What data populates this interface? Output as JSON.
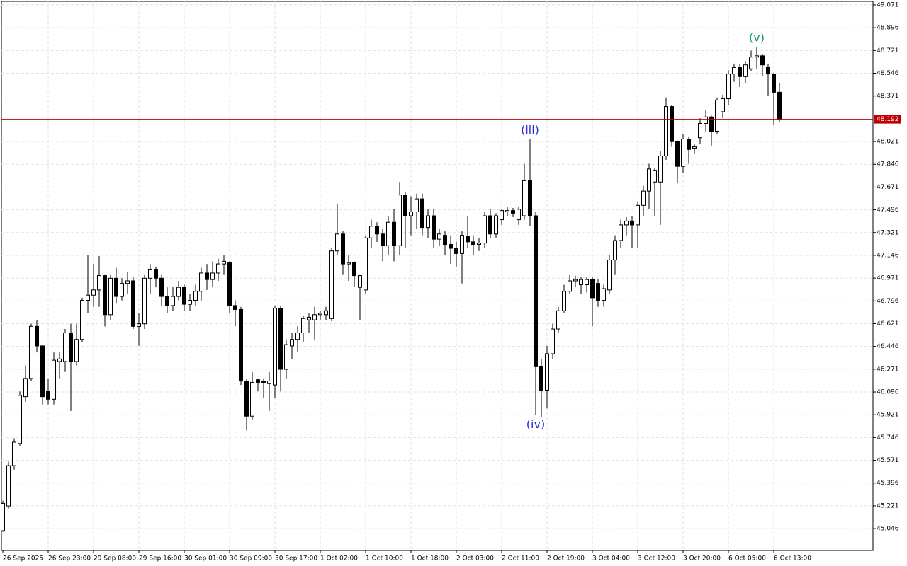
{
  "chart_data": {
    "type": "candlestick",
    "grid": true,
    "ylim": [
      44.878,
      49.098
    ],
    "yticks": [
      49.071,
      48.896,
      48.721,
      48.546,
      48.371,
      48.021,
      47.846,
      47.671,
      47.496,
      47.321,
      47.146,
      46.971,
      46.796,
      46.621,
      46.446,
      46.271,
      46.096,
      45.921,
      45.746,
      45.571,
      45.396,
      45.221,
      45.046
    ],
    "xlim": [
      -0.25,
      153.5
    ],
    "xticks": [
      {
        "value": 0,
        "label": "26 Sep 2025"
      },
      {
        "value": 8,
        "label": "26 Sep 23:00"
      },
      {
        "value": 16,
        "label": "29 Sep 08:00"
      },
      {
        "value": 24,
        "label": "29 Sep 16:00"
      },
      {
        "value": 32,
        "label": "30 Sep 01:00"
      },
      {
        "value": 40,
        "label": "30 Sep 09:00"
      },
      {
        "value": 48,
        "label": "30 Sep 17:00"
      },
      {
        "value": 56,
        "label": "1 Oct 02:00"
      },
      {
        "value": 64,
        "label": "1 Oct 10:00"
      },
      {
        "value": 72,
        "label": "1 Oct 18:00"
      },
      {
        "value": 80,
        "label": "2 Oct 03:00"
      },
      {
        "value": 88,
        "label": "2 Oct 11:00"
      },
      {
        "value": 96,
        "label": "2 Oct 19:00"
      },
      {
        "value": 104,
        "label": "3 Oct 04:00"
      },
      {
        "value": 112,
        "label": "3 Oct 12:00"
      },
      {
        "value": 120,
        "label": "3 Oct 20:00"
      },
      {
        "value": 128,
        "label": "6 Oct 05:00"
      },
      {
        "value": 136,
        "label": "6 Oct 13:00"
      }
    ],
    "up_color": "#ffffff",
    "down_color": "#000000",
    "open": [
      45.03,
      45.22,
      45.53,
      45.7,
      46.06,
      46.2,
      46.6,
      46.45,
      46.1,
      46.04,
      46.33,
      46.33,
      46.55,
      46.33,
      46.5,
      46.8,
      46.84,
      46.88,
      46.99,
      46.69,
      46.97,
      46.83,
      46.93,
      46.95,
      46.6,
      46.62,
      46.97,
      47.04,
      46.97,
      46.83,
      46.76,
      46.83,
      46.9,
      46.77,
      46.8,
      46.87,
      47.01,
      46.96,
      47.01,
      47.08,
      47.09,
      46.76,
      46.73,
      46.18,
      45.91,
      46.19,
      46.18,
      46.16,
      46.15,
      46.74,
      46.27,
      46.45,
      46.5,
      46.55,
      46.65,
      46.65,
      46.69,
      46.69,
      46.66,
      47.18,
      47.31,
      47.08,
      47.09,
      46.9,
      46.88,
      47.28,
      47.37,
      47.31,
      47.22,
      47.4,
      47.22,
      47.61,
      47.45,
      47.48,
      47.58,
      47.36,
      47.45,
      47.27,
      47.3,
      47.23,
      47.2,
      47.16,
      47.29,
      47.25,
      47.23,
      47.24,
      47.45,
      47.31,
      47.42,
      47.48,
      47.49,
      47.42,
      47.45,
      47.72,
      47.45,
      46.29,
      46.11,
      46.39,
      46.58,
      46.72,
      46.87,
      46.95,
      46.92,
      46.92,
      46.96,
      46.93,
      46.8,
      46.88,
      47.11,
      47.26,
      47.38,
      47.41,
      47.38,
      47.53,
      47.64,
      47.71,
      47.71,
      47.91,
      48.29,
      48.02,
      47.83,
      48.04,
      47.97,
      48.05,
      48.16,
      48.21,
      48.1,
      48.25,
      48.35,
      48.54,
      48.59,
      48.52,
      48.58,
      48.67,
      48.68,
      48.59,
      48.54,
      48.4
    ],
    "high": [
      45.26,
      45.56,
      45.74,
      46.1,
      46.3,
      46.62,
      46.65,
      46.46,
      46.2,
      46.4,
      46.4,
      46.58,
      46.62,
      46.62,
      46.82,
      47.15,
      47.08,
      47.14,
      47.0,
      47.0,
      47.05,
      46.97,
      47.02,
      46.98,
      46.7,
      47.0,
      47.08,
      47.06,
      47.0,
      46.9,
      46.9,
      46.95,
      46.92,
      46.85,
      46.92,
      47.05,
      47.08,
      47.1,
      47.12,
      47.15,
      47.1,
      46.8,
      46.75,
      46.2,
      46.25,
      46.2,
      46.2,
      46.25,
      46.76,
      46.76,
      46.5,
      46.55,
      46.6,
      46.68,
      46.7,
      46.75,
      46.72,
      46.75,
      47.2,
      47.54,
      47.33,
      47.15,
      47.1,
      47.0,
      47.3,
      47.42,
      47.4,
      47.35,
      47.45,
      47.5,
      47.71,
      47.63,
      47.6,
      47.62,
      47.62,
      47.5,
      47.5,
      47.35,
      47.33,
      47.3,
      47.25,
      47.33,
      47.45,
      47.3,
      47.28,
      47.48,
      47.5,
      47.47,
      47.5,
      47.52,
      47.51,
      47.52,
      47.85,
      48.04,
      47.48,
      46.35,
      46.45,
      46.62,
      46.75,
      46.92,
      47.0,
      46.99,
      46.98,
      46.98,
      46.98,
      46.96,
      46.92,
      47.15,
      47.3,
      47.42,
      47.44,
      47.45,
      47.56,
      47.68,
      47.85,
      47.82,
      47.95,
      48.36,
      48.3,
      48.03,
      48.08,
      48.06,
      48.0,
      48.2,
      48.26,
      48.22,
      48.36,
      48.38,
      48.57,
      48.62,
      48.62,
      48.64,
      48.72,
      48.75,
      48.69,
      48.62,
      48.55,
      48.47
    ],
    "low": [
      45.02,
      45.2,
      45.5,
      45.68,
      46.02,
      46.18,
      46.4,
      46.0,
      46.0,
      46.0,
      46.2,
      46.25,
      45.95,
      46.3,
      46.48,
      46.7,
      46.75,
      46.75,
      46.6,
      46.65,
      46.78,
      46.8,
      46.85,
      46.58,
      46.45,
      46.58,
      46.85,
      46.9,
      46.76,
      46.7,
      46.72,
      46.8,
      46.72,
      46.72,
      46.76,
      46.8,
      46.88,
      46.9,
      46.95,
      47.0,
      46.7,
      46.6,
      46.15,
      45.8,
      45.88,
      46.1,
      46.05,
      45.95,
      46.05,
      46.1,
      46.2,
      46.35,
      46.4,
      46.48,
      46.55,
      46.5,
      46.65,
      46.65,
      46.64,
      47.15,
      47.0,
      46.95,
      46.9,
      46.65,
      46.85,
      47.2,
      47.25,
      47.1,
      47.15,
      47.1,
      47.15,
      47.2,
      47.3,
      47.35,
      47.3,
      47.28,
      47.2,
      47.22,
      47.15,
      47.08,
      47.06,
      46.93,
      47.2,
      47.15,
      47.18,
      47.2,
      47.28,
      47.28,
      47.38,
      47.45,
      47.44,
      47.38,
      47.42,
      47.37,
      45.92,
      45.9,
      45.97,
      46.35,
      46.55,
      46.7,
      46.85,
      46.9,
      46.85,
      46.86,
      46.6,
      46.75,
      46.75,
      46.85,
      47.0,
      47.2,
      47.3,
      47.2,
      47.2,
      47.45,
      47.5,
      47.45,
      47.38,
      47.88,
      47.98,
      47.7,
      47.78,
      47.85,
      47.93,
      48.0,
      48.1,
      47.99,
      48.08,
      48.2,
      48.3,
      48.48,
      48.44,
      48.47,
      48.56,
      48.58,
      48.52,
      48.37,
      48.15,
      48.17
    ],
    "close": [
      45.24,
      45.53,
      45.71,
      46.07,
      46.2,
      46.6,
      46.45,
      46.06,
      46.04,
      46.34,
      46.35,
      46.55,
      46.33,
      46.5,
      46.8,
      46.84,
      46.88,
      46.99,
      46.69,
      46.97,
      46.83,
      46.93,
      46.95,
      46.6,
      46.62,
      46.97,
      47.04,
      46.97,
      46.83,
      46.76,
      46.83,
      46.9,
      46.77,
      46.8,
      46.87,
      47.01,
      46.96,
      47.01,
      47.08,
      47.1,
      46.76,
      46.73,
      46.18,
      45.91,
      46.17,
      46.17,
      46.17,
      46.18,
      46.74,
      46.27,
      46.46,
      46.5,
      46.55,
      46.66,
      46.67,
      46.69,
      46.7,
      46.72,
      47.18,
      47.31,
      47.08,
      47.09,
      46.99,
      46.99,
      47.28,
      47.37,
      47.31,
      47.22,
      47.4,
      47.22,
      47.61,
      47.45,
      47.48,
      47.58,
      47.36,
      47.45,
      47.27,
      47.31,
      47.23,
      47.2,
      47.16,
      47.3,
      47.25,
      47.23,
      47.24,
      47.45,
      47.31,
      47.45,
      47.49,
      47.49,
      47.47,
      47.5,
      47.72,
      47.45,
      46.29,
      46.11,
      46.39,
      46.58,
      46.72,
      46.87,
      46.95,
      46.96,
      46.96,
      46.96,
      46.82,
      46.8,
      46.89,
      47.11,
      47.26,
      47.38,
      47.41,
      47.38,
      47.53,
      47.64,
      47.81,
      47.8,
      47.91,
      48.29,
      48.02,
      47.83,
      48.04,
      47.96,
      47.98,
      48.16,
      48.21,
      48.1,
      48.34,
      48.35,
      48.54,
      48.59,
      48.52,
      48.61,
      48.67,
      48.68,
      48.61,
      48.54,
      48.4,
      48.192
    ],
    "last_price": 48.192,
    "last_price_color": "#c00000",
    "annotations": [
      {
        "text": "(iii)",
        "index": 93,
        "anchor": "high",
        "color": "#2a2ad8"
      },
      {
        "text": "(iv)",
        "index": 94,
        "anchor": "low",
        "color": "#2a2ad8"
      },
      {
        "text": "(v)",
        "index": 133,
        "anchor": "high",
        "color": "#1e9a7a"
      }
    ]
  }
}
